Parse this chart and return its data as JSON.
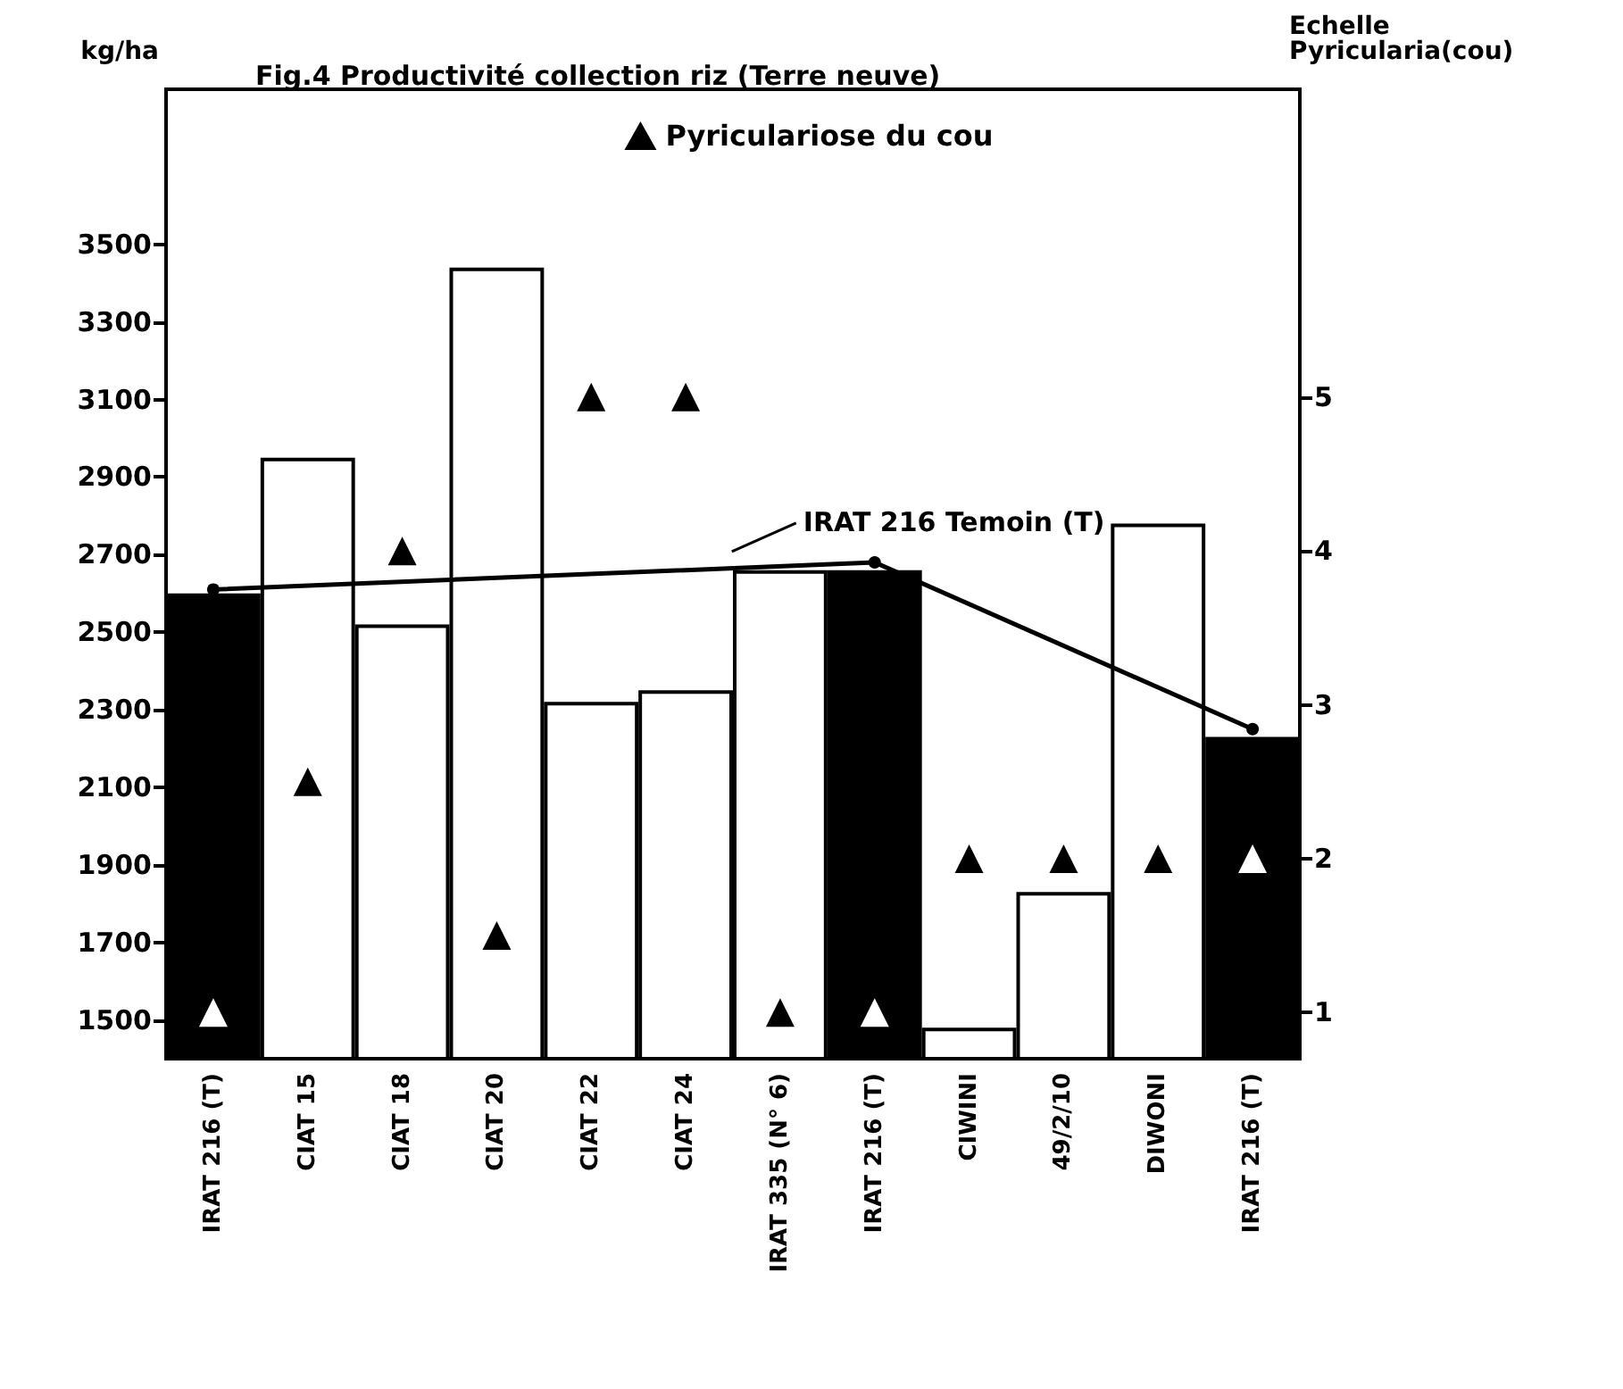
{
  "chart_data": {
    "type": "bar",
    "title": "Fig.4 Productivité collection riz (Terre neuve)",
    "ylabel": "kg/ha",
    "y2label": "Echelle\nPyricularia(cou)",
    "categories": [
      "IRAT 216 (T)",
      "CIAT 15",
      "CIAT 18",
      "CIAT 20",
      "CIAT 22",
      "CIAT 24",
      "IRAT 335 (N° 6)",
      "IRAT 216 (T)",
      "CIWINI",
      "49/2/10",
      "DIWONI",
      "IRAT 216 (T)"
    ],
    "series": [
      {
        "values": [
          2600,
          2950,
          2520,
          3440,
          2320,
          2350,
          2660,
          2660,
          1480,
          1830,
          2780,
          2230
        ],
        "colors": [
          "#000000",
          "#ffffff",
          "#ffffff",
          "#ffffff",
          "#ffffff",
          "#ffffff",
          "#ffffff",
          "#000000",
          "#ffffff",
          "#ffffff",
          "#ffffff",
          "#000000"
        ]
      },
      {
        "type": "line",
        "name": "IRAT 216 Temoin (T)",
        "color": "#000000",
        "marker": "circle",
        "values": [
          2610,
          null,
          null,
          null,
          null,
          null,
          null,
          2680,
          null,
          null,
          null,
          2250
        ]
      },
      {
        "type": "scatter",
        "name": "Pyriculariose du cou",
        "axis": "y2",
        "color": "#000000",
        "marker": "triangle",
        "values": [
          1,
          2.5,
          4,
          1.5,
          5,
          5,
          1,
          1,
          2,
          2,
          2,
          2
        ],
        "colors": [
          "#ffffff",
          "#000000",
          "#000000",
          "#000000",
          "#000000",
          "#000000",
          "#000000",
          "#ffffff",
          "#000000",
          "#000000",
          "#000000",
          "#ffffff"
        ]
      }
    ],
    "ylim": [
      1400,
      3900
    ],
    "yticks": [
      1500,
      1700,
      1900,
      2100,
      2300,
      2500,
      2700,
      2900,
      3100,
      3300,
      3500
    ],
    "y2lim": [
      0.7,
      7
    ],
    "y2ticks": [
      1,
      2,
      3,
      4,
      5
    ],
    "legend": "top",
    "grid": false
  }
}
